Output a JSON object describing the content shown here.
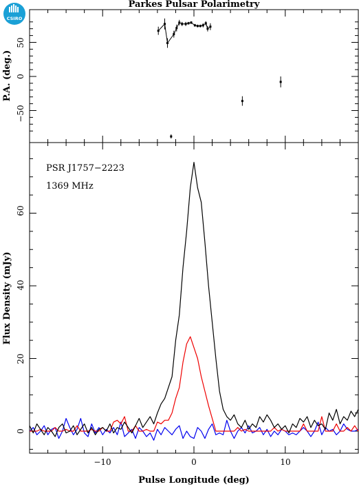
{
  "title": "Parkes Pulsar Polarimetry",
  "logo_text": "CSIRO",
  "colors": {
    "total": "#000000",
    "linear": "#ee0000",
    "circular": "#0000ee",
    "logo": "#1aa0d6"
  },
  "chart_data": [
    {
      "type": "scatter",
      "ylabel": "P.A. (deg.)",
      "xlim": [
        -18,
        18
      ],
      "ylim": [
        -90,
        90
      ],
      "yticks": [
        -50,
        0,
        50
      ],
      "ytick_labels": [
        "−50",
        "0",
        "50"
      ],
      "points": [
        {
          "x": -3.9,
          "y": 67,
          "err": 6
        },
        {
          "x": -3.2,
          "y": 77,
          "err": 8
        },
        {
          "x": -2.9,
          "y": 49,
          "err": 7
        },
        {
          "x": -2.2,
          "y": 62,
          "err": 5
        },
        {
          "x": -1.9,
          "y": 71,
          "err": 5
        },
        {
          "x": -1.6,
          "y": 79,
          "err": 4
        },
        {
          "x": -1.3,
          "y": 77,
          "err": 3
        },
        {
          "x": -0.9,
          "y": 77,
          "err": 3
        },
        {
          "x": -0.6,
          "y": 78,
          "err": 2
        },
        {
          "x": -0.3,
          "y": 79,
          "err": 2
        },
        {
          "x": 0.1,
          "y": 75,
          "err": 2
        },
        {
          "x": 0.4,
          "y": 74,
          "err": 2
        },
        {
          "x": 0.7,
          "y": 74,
          "err": 2
        },
        {
          "x": 1.0,
          "y": 75,
          "err": 3
        },
        {
          "x": 1.3,
          "y": 78,
          "err": 3
        },
        {
          "x": 1.5,
          "y": 70,
          "err": 4
        },
        {
          "x": 1.8,
          "y": 73,
          "err": 5
        },
        {
          "x": -2.5,
          "y": -88,
          "err": 3
        },
        {
          "x": 5.3,
          "y": -36,
          "err": 7
        },
        {
          "x": 9.5,
          "y": -8,
          "err": 8
        }
      ]
    },
    {
      "type": "line",
      "annotations": [
        "PSR J1757−2223",
        "1369 MHz"
      ],
      "xlabel": "Pulse Longitude (deg)",
      "ylabel": "Flux Density (mJy)",
      "xlim": [
        -18,
        18
      ],
      "ylim": [
        -6,
        78
      ],
      "xticks": [
        -10,
        0,
        10
      ],
      "xtick_labels": [
        "−10",
        "0",
        "10"
      ],
      "yticks": [
        0,
        20,
        40,
        60
      ],
      "ytick_labels": [
        "0",
        "20",
        "40",
        "60"
      ],
      "x": [
        -18.0,
        -17.6,
        -17.2,
        -16.8,
        -16.4,
        -16.0,
        -15.6,
        -15.2,
        -14.8,
        -14.4,
        -14.0,
        -13.6,
        -13.2,
        -12.8,
        -12.4,
        -12.0,
        -11.6,
        -11.2,
        -10.8,
        -10.4,
        -10.0,
        -9.6,
        -9.2,
        -8.8,
        -8.4,
        -8.0,
        -7.6,
        -7.2,
        -6.8,
        -6.4,
        -6.0,
        -5.6,
        -5.2,
        -4.8,
        -4.4,
        -4.0,
        -3.6,
        -3.2,
        -2.8,
        -2.4,
        -2.0,
        -1.6,
        -1.2,
        -0.8,
        -0.4,
        0.0,
        0.4,
        0.8,
        1.2,
        1.6,
        2.0,
        2.4,
        2.8,
        3.2,
        3.6,
        4.0,
        4.4,
        4.8,
        5.2,
        5.6,
        6.0,
        6.4,
        6.8,
        7.2,
        7.6,
        8.0,
        8.4,
        8.8,
        9.2,
        9.6,
        10.0,
        10.4,
        10.8,
        11.2,
        11.6,
        12.0,
        12.4,
        12.8,
        13.2,
        13.6,
        14.0,
        14.4,
        14.8,
        15.2,
        15.6,
        16.0,
        16.4,
        16.8,
        17.2,
        17.6,
        18.0
      ],
      "series": [
        {
          "key": "total",
          "values": [
            1.5,
            -0.5,
            2,
            0.5,
            -1,
            1,
            0,
            -1.5,
            1,
            2,
            -0.5,
            0,
            1.5,
            -1,
            0.5,
            2,
            -0.5,
            1,
            -1,
            0.5,
            1,
            0,
            2,
            -0.5,
            1,
            0.5,
            2.5,
            1,
            -0.5,
            1.5,
            3.5,
            1,
            2.5,
            4,
            2,
            5,
            7.5,
            9,
            12,
            15,
            25,
            32,
            45,
            55,
            67,
            74,
            67,
            63,
            52,
            40,
            30,
            20,
            11,
            6,
            4,
            3,
            4.5,
            2,
            1,
            3,
            0.5,
            2,
            1,
            4,
            2.5,
            4.5,
            3,
            1,
            2,
            0.5,
            1.5,
            -0.5,
            2,
            1,
            3.5,
            2.5,
            4,
            1,
            3,
            1.5,
            2,
            0.5,
            5,
            3,
            6,
            2,
            4,
            3,
            5.5,
            4,
            6
          ]
        },
        {
          "key": "linear",
          "values": [
            0,
            0,
            0,
            0.5,
            0,
            0,
            0,
            1,
            0,
            0,
            0.5,
            0,
            0,
            1.5,
            0,
            0,
            0,
            0.5,
            0,
            0,
            1,
            0,
            0,
            2.5,
            3,
            2,
            4,
            0,
            0,
            1.5,
            0,
            0,
            0.5,
            0,
            0,
            2.5,
            2,
            3,
            3,
            5,
            9,
            12,
            19,
            24,
            26,
            23,
            20,
            15,
            11,
            7,
            3.5,
            0,
            0,
            0,
            0,
            0,
            0,
            1,
            0,
            0.5,
            0,
            0,
            0,
            0,
            0,
            0,
            0,
            1,
            0,
            0.5,
            0,
            0,
            0,
            0,
            0,
            2,
            0,
            0,
            0,
            0,
            4,
            0,
            0,
            0,
            2,
            0,
            0,
            1,
            0,
            1.5,
            0
          ]
        },
        {
          "key": "circular",
          "values": [
            0,
            1,
            -1,
            0,
            1.5,
            -1,
            0.5,
            1,
            -2,
            0,
            3.5,
            1,
            -1,
            0.5,
            3.5,
            -0.5,
            -1.5,
            2,
            -0.5,
            1,
            -1,
            0.5,
            -0.5,
            1,
            -1,
            2.5,
            -1.5,
            -0.5,
            0.5,
            -2,
            1,
            0,
            -1.5,
            -0.5,
            -2.5,
            0.5,
            -1,
            1,
            0,
            -1,
            0.5,
            1.5,
            -2,
            0,
            -1.5,
            -2,
            1,
            0,
            -2,
            0.5,
            2,
            -1,
            -0.5,
            -1,
            3,
            0,
            -2,
            0,
            1,
            -0.5,
            1.5,
            -0.5,
            0,
            1,
            -1,
            0.5,
            -1.5,
            0,
            -1,
            0.5,
            0,
            -1,
            -0.5,
            -1,
            0,
            1,
            0,
            -1.5,
            0,
            2.5,
            -1,
            1,
            0,
            0.5,
            -1,
            0,
            2,
            0.5,
            0,
            0,
            0.5
          ]
        }
      ]
    }
  ]
}
